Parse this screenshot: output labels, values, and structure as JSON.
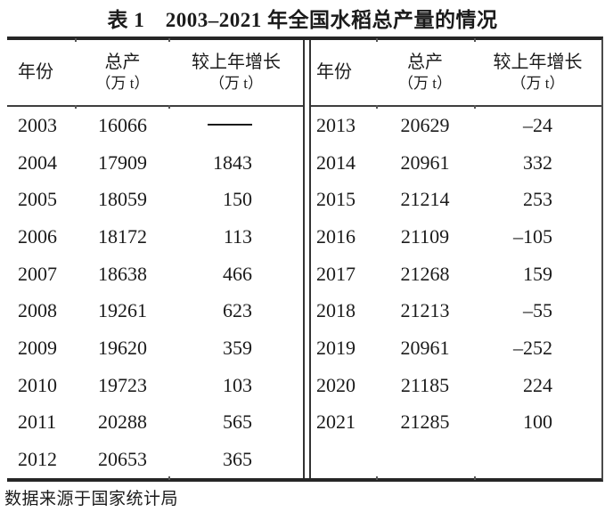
{
  "title": "表 1　2003–2021 年全国水稻总产量的情况",
  "header": {
    "year": "年份",
    "total": "总产",
    "growth": "较上年增长",
    "unit": "（万 t）"
  },
  "left_rows": [
    {
      "year": "2003",
      "total": "16066",
      "growth": "——"
    },
    {
      "year": "2004",
      "total": "17909",
      "growth": "1843"
    },
    {
      "year": "2005",
      "total": "18059",
      "growth": "150"
    },
    {
      "year": "2006",
      "total": "18172",
      "growth": "113"
    },
    {
      "year": "2007",
      "total": "18638",
      "growth": "466"
    },
    {
      "year": "2008",
      "total": "19261",
      "growth": "623"
    },
    {
      "year": "2009",
      "total": "19620",
      "growth": "359"
    },
    {
      "year": "2010",
      "total": "19723",
      "growth": "103"
    },
    {
      "year": "2011",
      "total": "20288",
      "growth": "565"
    },
    {
      "year": "2012",
      "total": "20653",
      "growth": "365"
    }
  ],
  "right_rows": [
    {
      "year": "2013",
      "total": "20629",
      "growth": "–24"
    },
    {
      "year": "2014",
      "total": "20961",
      "growth": "332"
    },
    {
      "year": "2015",
      "total": "21214",
      "growth": "253"
    },
    {
      "year": "2016",
      "total": "21109",
      "growth": "–105"
    },
    {
      "year": "2017",
      "total": "21268",
      "growth": "159"
    },
    {
      "year": "2018",
      "total": "21213",
      "growth": "–55"
    },
    {
      "year": "2019",
      "total": "20961",
      "growth": "–252"
    },
    {
      "year": "2020",
      "total": "21185",
      "growth": "224"
    },
    {
      "year": "2021",
      "total": "21285",
      "growth": "100"
    },
    {
      "year": "",
      "total": "",
      "growth": ""
    }
  ],
  "footer": "数据来源于国家统计局",
  "colors": {
    "text": "#1b1b1b",
    "rule_heavy": "#262626",
    "rule_light": "#3f3f3f",
    "background": "#ffffff"
  }
}
